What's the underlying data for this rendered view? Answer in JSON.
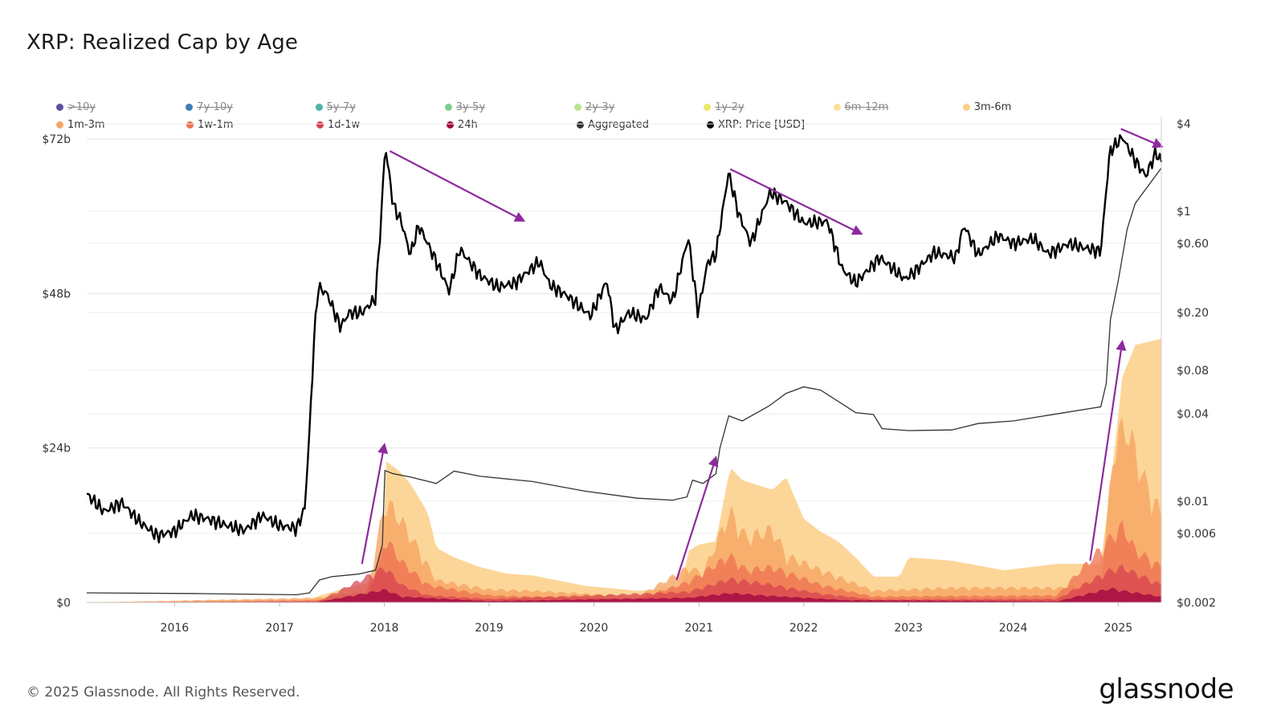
{
  "title": "XRP: Realized Cap by Age",
  "footer": "© 2025 Glassnode. All Rights Reserved.",
  "brand": "glassnode",
  "legend": [
    {
      "label": ">10y",
      "color": "#5e4fa2",
      "enabled": false
    },
    {
      "label": "7y-10y",
      "color": "#3f7fb5",
      "enabled": false
    },
    {
      "label": "5y-7y",
      "color": "#4fb3a8",
      "enabled": false
    },
    {
      "label": "3y-5y",
      "color": "#7ecf8d",
      "enabled": false
    },
    {
      "label": "2y-3y",
      "color": "#b9e58c",
      "enabled": false
    },
    {
      "label": "1y-2y",
      "color": "#e8e86a",
      "enabled": false
    },
    {
      "label": "6m-12m",
      "color": "#fde19a",
      "enabled": false
    },
    {
      "label": "3m-6m",
      "color": "#fbcf86",
      "enabled": true
    },
    {
      "label": "1m-3m",
      "color": "#f6a563",
      "enabled": true
    },
    {
      "label": "1w-1m",
      "color": "#ef7052",
      "enabled": true
    },
    {
      "label": "1d-1w",
      "color": "#d6404e",
      "enabled": true
    },
    {
      "label": "24h",
      "color": "#9e0142",
      "enabled": true
    },
    {
      "label": "Aggregated",
      "color": "#333333",
      "enabled": true
    },
    {
      "label": "XRP: Price [USD]",
      "color": "#000000",
      "enabled": true
    }
  ],
  "chart_data": {
    "type": "area",
    "title": "XRP: Realized Cap by Age",
    "x_type": "date",
    "x_ticks": [
      "2016",
      "2017",
      "2018",
      "2019",
      "2020",
      "2021",
      "2022",
      "2023",
      "2024",
      "2025"
    ],
    "xlim": [
      "2015-03-01",
      "2025-05-31"
    ],
    "y_left": {
      "ticks": [
        "$0",
        "$24b",
        "$48b",
        "$72b"
      ],
      "tick_values": [
        0,
        24,
        48,
        72
      ],
      "unit": "billion USD",
      "ylim": [
        0,
        75.5
      ]
    },
    "y_right": {
      "scale": "log",
      "ticks": [
        "$0.002",
        "$0.006",
        "$0.01",
        "$0.04",
        "$0.08",
        "$0.20",
        "$0.60",
        "$1",
        "$4"
      ],
      "tick_values": [
        0.002,
        0.006,
        0.01,
        0.04,
        0.08,
        0.2,
        0.6,
        1,
        4
      ],
      "ylim": [
        0.002,
        4.5
      ]
    },
    "grid": true,
    "legend_position": "top",
    "series": [
      {
        "name": "Aggregated",
        "axis": "left",
        "color": "#333333",
        "points": [
          [
            "2015-03-01",
            1.5
          ],
          [
            "2016-03-01",
            1.4
          ],
          [
            "2017-03-01",
            1.2
          ],
          [
            "2017-04-15",
            1.5
          ],
          [
            "2017-05-20",
            3.5
          ],
          [
            "2017-07-01",
            4.0
          ],
          [
            "2017-10-01",
            4.4
          ],
          [
            "2017-12-01",
            5.0
          ],
          [
            "2017-12-25",
            9.0
          ],
          [
            "2018-01-03",
            20.5
          ],
          [
            "2018-02-01",
            20.0
          ],
          [
            "2018-04-01",
            19.5
          ],
          [
            "2018-07-01",
            18.5
          ],
          [
            "2018-09-01",
            20.4
          ],
          [
            "2018-12-01",
            19.6
          ],
          [
            "2019-06-01",
            18.8
          ],
          [
            "2019-12-01",
            17.3
          ],
          [
            "2020-06-01",
            16.2
          ],
          [
            "2020-10-01",
            15.9
          ],
          [
            "2020-11-20",
            16.4
          ],
          [
            "2020-12-10",
            19.0
          ],
          [
            "2021-01-15",
            18.5
          ],
          [
            "2021-03-01",
            20.0
          ],
          [
            "2021-03-15",
            24.0
          ],
          [
            "2021-04-15",
            29.0
          ],
          [
            "2021-06-01",
            28.2
          ],
          [
            "2021-09-01",
            30.5
          ],
          [
            "2021-11-01",
            32.5
          ],
          [
            "2022-01-01",
            33.5
          ],
          [
            "2022-03-01",
            33.0
          ],
          [
            "2022-07-01",
            29.5
          ],
          [
            "2022-09-01",
            29.2
          ],
          [
            "2022-10-01",
            27.0
          ],
          [
            "2023-01-01",
            26.7
          ],
          [
            "2023-06-01",
            26.8
          ],
          [
            "2023-09-01",
            27.8
          ],
          [
            "2024-01-01",
            28.2
          ],
          [
            "2024-06-01",
            29.3
          ],
          [
            "2024-11-01",
            30.4
          ],
          [
            "2024-11-20",
            34.0
          ],
          [
            "2024-12-05",
            44.0
          ],
          [
            "2025-01-01",
            50.0
          ],
          [
            "2025-02-01",
            58.0
          ],
          [
            "2025-03-01",
            62.0
          ],
          [
            "2025-05-31",
            67.5
          ]
        ]
      },
      {
        "name": "XRP: Price [USD]",
        "axis": "right",
        "color": "#000000",
        "points": [
          [
            "2015-03-01",
            0.0112
          ],
          [
            "2015-05-01",
            0.0085
          ],
          [
            "2015-07-01",
            0.0098
          ],
          [
            "2015-09-01",
            0.0072
          ],
          [
            "2015-11-01",
            0.0058
          ],
          [
            "2016-01-01",
            0.0062
          ],
          [
            "2016-03-01",
            0.008
          ],
          [
            "2016-05-01",
            0.0075
          ],
          [
            "2016-07-01",
            0.0068
          ],
          [
            "2016-09-01",
            0.0063
          ],
          [
            "2016-11-01",
            0.008
          ],
          [
            "2017-01-01",
            0.0068
          ],
          [
            "2017-03-01",
            0.0065
          ],
          [
            "2017-03-30",
            0.009
          ],
          [
            "2017-04-15",
            0.03
          ],
          [
            "2017-05-01",
            0.13
          ],
          [
            "2017-05-15",
            0.3
          ],
          [
            "2017-06-15",
            0.27
          ],
          [
            "2017-08-01",
            0.16
          ],
          [
            "2017-09-01",
            0.2
          ],
          [
            "2017-10-15",
            0.2
          ],
          [
            "2017-12-01",
            0.25
          ],
          [
            "2017-12-20",
            0.85
          ],
          [
            "2018-01-04",
            2.85
          ],
          [
            "2018-02-01",
            1.1
          ],
          [
            "2018-03-01",
            0.85
          ],
          [
            "2018-04-01",
            0.5
          ],
          [
            "2018-05-01",
            0.8
          ],
          [
            "2018-07-01",
            0.45
          ],
          [
            "2018-08-15",
            0.28
          ],
          [
            "2018-09-20",
            0.55
          ],
          [
            "2018-12-01",
            0.36
          ],
          [
            "2019-02-01",
            0.3
          ],
          [
            "2019-04-01",
            0.32
          ],
          [
            "2019-06-25",
            0.45
          ],
          [
            "2019-08-01",
            0.31
          ],
          [
            "2019-10-01",
            0.26
          ],
          [
            "2019-12-20",
            0.19
          ],
          [
            "2020-02-15",
            0.33
          ],
          [
            "2020-03-15",
            0.15
          ],
          [
            "2020-05-01",
            0.2
          ],
          [
            "2020-07-01",
            0.18
          ],
          [
            "2020-08-15",
            0.3
          ],
          [
            "2020-10-01",
            0.24
          ],
          [
            "2020-11-25",
            0.66
          ],
          [
            "2020-12-29",
            0.2
          ],
          [
            "2021-02-01",
            0.45
          ],
          [
            "2021-03-01",
            0.5
          ],
          [
            "2021-04-14",
            1.85
          ],
          [
            "2021-05-20",
            0.95
          ],
          [
            "2021-07-01",
            0.6
          ],
          [
            "2021-09-06",
            1.35
          ],
          [
            "2021-11-01",
            1.15
          ],
          [
            "2022-01-01",
            0.83
          ],
          [
            "2022-03-25",
            0.85
          ],
          [
            "2022-05-15",
            0.4
          ],
          [
            "2022-07-01",
            0.32
          ],
          [
            "2022-09-23",
            0.48
          ],
          [
            "2022-12-20",
            0.34
          ],
          [
            "2023-02-01",
            0.4
          ],
          [
            "2023-04-01",
            0.52
          ],
          [
            "2023-06-15",
            0.48
          ],
          [
            "2023-07-13",
            0.8
          ],
          [
            "2023-09-01",
            0.5
          ],
          [
            "2023-11-10",
            0.68
          ],
          [
            "2024-01-01",
            0.6
          ],
          [
            "2024-03-10",
            0.65
          ],
          [
            "2024-05-01",
            0.51
          ],
          [
            "2024-07-15",
            0.6
          ],
          [
            "2024-09-01",
            0.56
          ],
          [
            "2024-11-01",
            0.53
          ],
          [
            "2024-11-20",
            1.4
          ],
          [
            "2024-12-03",
            2.6
          ],
          [
            "2025-01-16",
            3.25
          ],
          [
            "2025-02-01",
            2.8
          ],
          [
            "2025-03-10",
            2.1
          ],
          [
            "2025-04-07",
            1.75
          ],
          [
            "2025-05-12",
            2.55
          ],
          [
            "2025-05-31",
            2.2
          ]
        ]
      },
      {
        "name": "3m-6m",
        "axis": "left",
        "color": "#fbcf86",
        "points": [
          [
            "2015-03-01",
            0.1
          ],
          [
            "2017-04-01",
            0.2
          ],
          [
            "2017-05-15",
            1.0
          ],
          [
            "2017-08-01",
            2.0
          ],
          [
            "2017-11-01",
            3.0
          ],
          [
            "2017-12-25",
            4.0
          ],
          [
            "2018-01-05",
            22.0
          ],
          [
            "2018-02-20",
            20.5
          ],
          [
            "2018-04-01",
            18.5
          ],
          [
            "2018-06-01",
            14.0
          ],
          [
            "2018-07-01",
            8.5
          ],
          [
            "2018-09-01",
            7.0
          ],
          [
            "2018-12-01",
            5.5
          ],
          [
            "2019-03-01",
            4.5
          ],
          [
            "2019-06-01",
            4.2
          ],
          [
            "2019-09-01",
            3.4
          ],
          [
            "2019-12-01",
            2.6
          ],
          [
            "2020-06-01",
            1.8
          ],
          [
            "2020-11-01",
            2.3
          ],
          [
            "2020-11-25",
            8.0
          ],
          [
            "2021-01-01",
            9.0
          ],
          [
            "2021-03-01",
            9.5
          ],
          [
            "2021-04-20",
            21.0
          ],
          [
            "2021-06-01",
            19.0
          ],
          [
            "2021-09-15",
            17.5
          ],
          [
            "2021-11-01",
            19.5
          ],
          [
            "2022-01-01",
            13.0
          ],
          [
            "2022-03-01",
            11.0
          ],
          [
            "2022-05-01",
            9.5
          ],
          [
            "2022-07-01",
            7.0
          ],
          [
            "2022-09-01",
            4.0
          ],
          [
            "2022-12-01",
            4.0
          ],
          [
            "2023-01-01",
            7.0
          ],
          [
            "2023-06-01",
            6.5
          ],
          [
            "2023-12-01",
            5.0
          ],
          [
            "2024-06-01",
            6.0
          ],
          [
            "2024-11-01",
            6.0
          ],
          [
            "2024-12-10",
            20.0
          ],
          [
            "2025-01-15",
            35.0
          ],
          [
            "2025-03-01",
            40.0
          ],
          [
            "2025-05-31",
            41.0
          ]
        ]
      },
      {
        "name": "1m-3m",
        "axis": "left",
        "color": "#f6a563",
        "points": [
          [
            "2015-03-01",
            0.0
          ],
          [
            "2017-05-15",
            0.8
          ],
          [
            "2017-11-01",
            1.8
          ],
          [
            "2018-01-05",
            17.5
          ],
          [
            "2018-03-01",
            14.0
          ],
          [
            "2018-05-01",
            9.0
          ],
          [
            "2018-07-01",
            3.8
          ],
          [
            "2019-01-01",
            2.2
          ],
          [
            "2019-06-01",
            2.0
          ],
          [
            "2020-06-01",
            1.0
          ],
          [
            "2020-11-25",
            6.0
          ],
          [
            "2021-01-15",
            5.0
          ],
          [
            "2021-04-20",
            15.5
          ],
          [
            "2021-06-15",
            11.0
          ],
          [
            "2021-09-15",
            12.5
          ],
          [
            "2021-11-01",
            8.0
          ],
          [
            "2022-03-01",
            5.5
          ],
          [
            "2022-09-01",
            2.0
          ],
          [
            "2023-06-01",
            2.5
          ],
          [
            "2024-06-01",
            2.5
          ],
          [
            "2024-11-01",
            3.0
          ],
          [
            "2024-12-20",
            28.0
          ],
          [
            "2025-02-01",
            30.0
          ],
          [
            "2025-04-01",
            21.0
          ],
          [
            "2025-05-31",
            15.0
          ]
        ]
      },
      {
        "name": "1w-1m",
        "axis": "left",
        "color": "#ef7052",
        "points": [
          [
            "2015-03-01",
            0.0
          ],
          [
            "2017-05-15",
            0.4
          ],
          [
            "2017-11-01",
            0.8
          ],
          [
            "2018-01-05",
            11.0
          ],
          [
            "2018-03-01",
            7.0
          ],
          [
            "2018-06-01",
            3.0
          ],
          [
            "2019-01-01",
            1.2
          ],
          [
            "2020-06-01",
            0.6
          ],
          [
            "2020-11-25",
            3.5
          ],
          [
            "2021-04-20",
            8.0
          ],
          [
            "2021-06-15",
            5.5
          ],
          [
            "2021-09-15",
            6.0
          ],
          [
            "2022-03-01",
            3.0
          ],
          [
            "2022-09-01",
            1.0
          ],
          [
            "2024-06-01",
            1.2
          ],
          [
            "2024-12-05",
            11.0
          ],
          [
            "2025-01-15",
            13.0
          ],
          [
            "2025-03-01",
            9.0
          ],
          [
            "2025-05-31",
            6.0
          ]
        ]
      },
      {
        "name": "1d-1w",
        "axis": "left",
        "color": "#d6404e",
        "points": [
          [
            "2015-03-01",
            0.0
          ],
          [
            "2017-05-15",
            0.2
          ],
          [
            "2018-01-05",
            6.0
          ],
          [
            "2018-03-01",
            3.0
          ],
          [
            "2018-06-01",
            1.2
          ],
          [
            "2019-01-01",
            0.6
          ],
          [
            "2020-11-25",
            1.8
          ],
          [
            "2021-04-20",
            4.0
          ],
          [
            "2021-09-15",
            3.0
          ],
          [
            "2022-03-01",
            1.5
          ],
          [
            "2022-09-01",
            0.5
          ],
          [
            "2024-06-01",
            0.6
          ],
          [
            "2024-12-05",
            5.5
          ],
          [
            "2025-01-15",
            6.0
          ],
          [
            "2025-05-31",
            3.0
          ]
        ]
      },
      {
        "name": "24h",
        "axis": "left",
        "color": "#9e0142",
        "points": [
          [
            "2015-03-01",
            0.0
          ],
          [
            "2017-05-15",
            0.1
          ],
          [
            "2018-01-05",
            2.2
          ],
          [
            "2018-03-01",
            1.0
          ],
          [
            "2019-01-01",
            0.25
          ],
          [
            "2020-11-25",
            0.8
          ],
          [
            "2021-04-20",
            1.6
          ],
          [
            "2021-09-15",
            1.1
          ],
          [
            "2022-06-01",
            0.4
          ],
          [
            "2024-06-01",
            0.2
          ],
          [
            "2024-12-05",
            2.4
          ],
          [
            "2025-01-15",
            2.0
          ],
          [
            "2025-05-31",
            1.0
          ]
        ]
      }
    ]
  }
}
